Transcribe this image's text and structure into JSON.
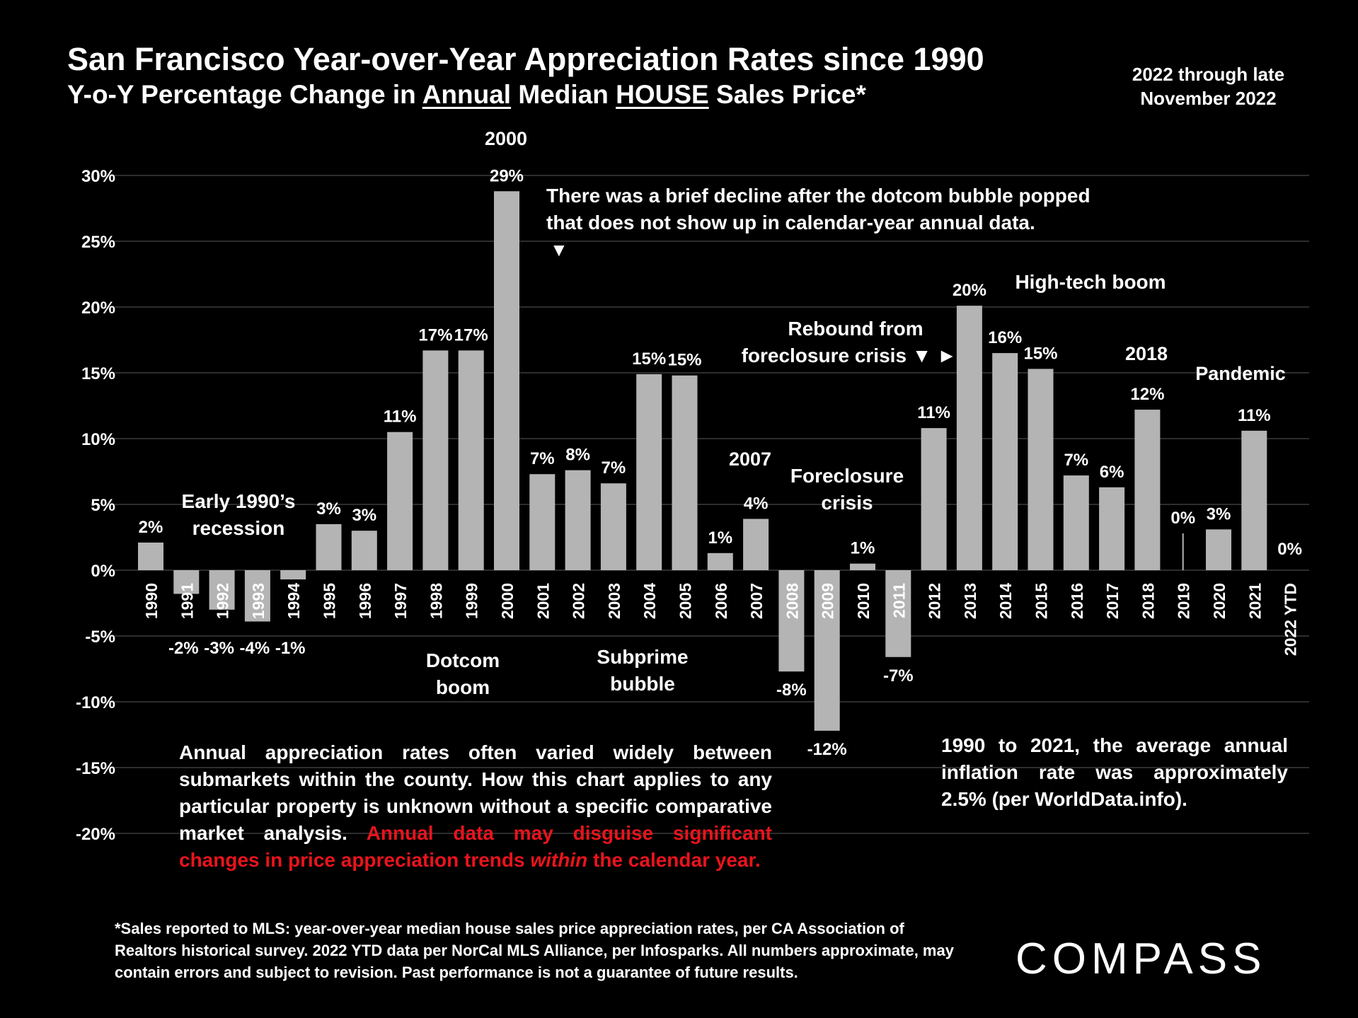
{
  "header": {
    "title": "San Francisco Year-over-Year Appreciation Rates since 1990",
    "subtitle_parts": [
      "Y-o-Y Percentage Change in ",
      "Annual",
      " Median ",
      "HOUSE",
      " Sales Price*"
    ],
    "period_line1": "2022 through late",
    "period_line2": "November 2022"
  },
  "chart_data": {
    "type": "bar",
    "categories": [
      "1990",
      "1991",
      "1992",
      "1993",
      "1994",
      "1995",
      "1996",
      "1997",
      "1998",
      "1999",
      "2000",
      "2001",
      "2002",
      "2003",
      "2004",
      "2005",
      "2006",
      "2007",
      "2008",
      "2009",
      "2010",
      "2011",
      "2012",
      "2013",
      "2014",
      "2015",
      "2016",
      "2017",
      "2018",
      "2019",
      "2020",
      "2021",
      "2022 YTD"
    ],
    "values": [
      2.1,
      -1.8,
      -3.0,
      -3.9,
      -0.7,
      3.5,
      3.0,
      10.5,
      16.7,
      16.7,
      28.8,
      7.3,
      7.6,
      6.6,
      14.9,
      14.8,
      1.3,
      3.9,
      -7.7,
      -12.2,
      0.5,
      -6.6,
      10.8,
      20.1,
      16.5,
      15.3,
      7.2,
      6.3,
      12.2,
      0.0,
      3.1,
      10.6,
      0.0
    ],
    "data_labels": [
      "2%",
      "-2%",
      "-3%",
      "-4%",
      "-1%",
      "3%",
      "3%",
      "11%",
      "17%",
      "17%",
      "29%",
      "7%",
      "8%",
      "7%",
      "15%",
      "15%",
      "1%",
      "4%",
      "-8%",
      "-12%",
      "1%",
      "-7%",
      "11%",
      "20%",
      "16%",
      "15%",
      "7%",
      "6%",
      "12%",
      "0%",
      "3%",
      "11%",
      "0%"
    ],
    "yticks": [
      "30%",
      "25%",
      "20%",
      "15%",
      "10%",
      "5%",
      "0%",
      "-5%",
      "-10%",
      "-15%",
      "-20%"
    ],
    "ylim": [
      -20,
      30
    ],
    "grid": true,
    "bar_color": "#b4b4b4",
    "grid_color": "#3c3c3c",
    "annotations": {
      "year_2000": "2000",
      "dotcom_note_1": "There was a brief decline after the dotcom bubble popped",
      "dotcom_note_2": "that does not show up in calendar-year annual data.",
      "down_arrow": "▼",
      "high_tech": "High-tech boom",
      "rebound_1": "Rebound from",
      "rebound_2": "foreclosure crisis ▼ ►",
      "year_2018": "2018",
      "pandemic": "Pandemic",
      "year_2007": "2007",
      "foreclosure_1": "Foreclosure",
      "foreclosure_2": "crisis",
      "recession_1": "Early 1990’s",
      "recession_2": "recession",
      "dotcom_boom_1": "Dotcom",
      "dotcom_boom_2": "boom",
      "subprime_1": "Subprime",
      "subprime_2": "bubble"
    }
  },
  "notes": {
    "left_white": "Annual appreciation rates often varied widely between submarkets within the county. How this chart applies to any particular property is unknown without a specific comparative market analysis. ",
    "left_red_1": "Annual data may disguise significant changes in price appreciation trends ",
    "left_red_italic": "within",
    "left_red_2": " the calendar year.",
    "right": "1990 to 2021, the average annual inflation rate was approximately 2.5% (per WorldData.info).",
    "highlight_color": "#e8141b"
  },
  "footnote": "*Sales reported to MLS: year-over-year median house sales price appreciation rates, per CA Association of Realtors historical survey. 2022 YTD data per NorCal MLS Alliance, per Infosparks. All numbers approximate, may contain errors and subject to revision. Past performance is not a guarantee of future results.",
  "brand": {
    "logo_text": "COMPASS"
  }
}
